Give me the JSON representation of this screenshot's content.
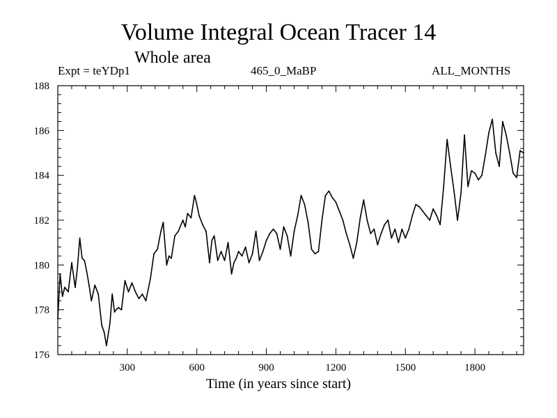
{
  "chart_data": {
    "type": "line",
    "title": "Volume Integral Ocean Tracer 14",
    "subtitle": "Whole area",
    "left_label": "Expt = teYDp1",
    "center_label": "465_0_MaBP",
    "right_label": "ALL_MONTHS",
    "xlabel": "Time (in years since start)",
    "ylabel": "",
    "xlim": [
      0,
      2010
    ],
    "ylim": [
      176,
      188
    ],
    "xticks": [
      300,
      600,
      900,
      1200,
      1500,
      1800
    ],
    "yticks": [
      176,
      178,
      180,
      182,
      184,
      186,
      188
    ],
    "grid": false,
    "series": [
      {
        "name": "Tracer 14",
        "color": "#000000",
        "x": [
          0,
          10,
          20,
          30,
          45,
          60,
          75,
          85,
          95,
          105,
          115,
          125,
          135,
          145,
          160,
          175,
          190,
          200,
          210,
          225,
          235,
          245,
          252,
          262,
          275,
          290,
          305,
          320,
          335,
          350,
          365,
          380,
          400,
          415,
          430,
          445,
          455,
          470,
          480,
          490,
          505,
          520,
          540,
          550,
          560,
          575,
          590,
          600,
          610,
          625,
          640,
          655,
          665,
          675,
          690,
          705,
          720,
          735,
          750,
          760,
          770,
          780,
          795,
          810,
          825,
          840,
          855,
          870,
          885,
          900,
          915,
          930,
          945,
          960,
          975,
          990,
          1005,
          1020,
          1035,
          1050,
          1065,
          1080,
          1095,
          1110,
          1125,
          1140,
          1155,
          1170,
          1185,
          1200,
          1215,
          1230,
          1245,
          1260,
          1275,
          1290,
          1305,
          1320,
          1335,
          1350,
          1365,
          1380,
          1395,
          1410,
          1425,
          1440,
          1455,
          1470,
          1485,
          1500,
          1515,
          1530,
          1545,
          1560,
          1575,
          1590,
          1605,
          1620,
          1635,
          1650,
          1665,
          1680,
          1695,
          1710,
          1725,
          1740,
          1755,
          1770,
          1785,
          1800,
          1815,
          1830,
          1845,
          1860,
          1875,
          1890,
          1905,
          1920,
          1935,
          1950,
          1965,
          1980,
          1995,
          2010
        ],
        "values": [
          177.6,
          179.6,
          178.6,
          179.0,
          178.8,
          180.1,
          179.0,
          179.9,
          181.2,
          180.3,
          180.2,
          179.7,
          179.1,
          178.4,
          179.1,
          178.7,
          177.3,
          177.0,
          176.4,
          177.4,
          178.7,
          177.9,
          178.0,
          178.1,
          178.0,
          179.3,
          178.8,
          179.2,
          178.8,
          178.5,
          178.7,
          178.4,
          179.4,
          180.5,
          180.7,
          181.5,
          181.9,
          180.0,
          180.4,
          180.3,
          181.3,
          181.5,
          182.0,
          181.7,
          182.3,
          182.1,
          183.1,
          182.7,
          182.2,
          181.8,
          181.5,
          180.1,
          181.1,
          181.3,
          180.2,
          180.6,
          180.2,
          181.0,
          179.6,
          180.1,
          180.3,
          180.6,
          180.4,
          180.8,
          180.1,
          180.5,
          181.5,
          180.2,
          180.6,
          181.1,
          181.4,
          181.6,
          181.4,
          180.7,
          181.7,
          181.3,
          180.4,
          181.5,
          182.2,
          183.1,
          182.7,
          181.9,
          180.7,
          180.5,
          180.6,
          182.0,
          183.1,
          183.3,
          183.0,
          182.8,
          182.4,
          182.0,
          181.4,
          180.9,
          180.3,
          181.0,
          182.1,
          182.9,
          182.0,
          181.4,
          181.6,
          180.9,
          181.4,
          181.8,
          182.0,
          181.2,
          181.6,
          181.0,
          181.6,
          181.2,
          181.6,
          182.2,
          182.7,
          182.6,
          182.4,
          182.2,
          182.0,
          182.5,
          182.2,
          181.8,
          183.5,
          185.6,
          184.4,
          183.3,
          182.0,
          183.2,
          185.8,
          183.5,
          184.2,
          184.1,
          183.8,
          184.0,
          184.9,
          185.9,
          186.5,
          185.0,
          184.4,
          186.4,
          185.8,
          185.0,
          184.1,
          183.9,
          185.1,
          185.0
        ]
      }
    ]
  }
}
